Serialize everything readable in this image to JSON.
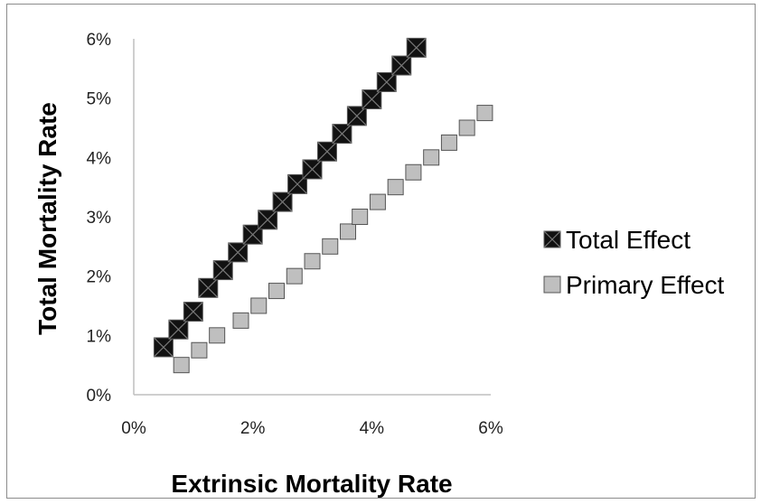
{
  "chart_data": {
    "type": "scatter",
    "title": "",
    "xlabel": "Extrinsic Mortality Rate",
    "ylabel": "Total Mortality Rate",
    "xlim": [
      0,
      0.06
    ],
    "ylim": [
      0,
      0.06
    ],
    "x_ticks": [
      "0%",
      "2%",
      "4%",
      "6%"
    ],
    "y_ticks": [
      "0%",
      "1%",
      "2%",
      "3%",
      "4%",
      "5%",
      "6%"
    ],
    "grid": false,
    "legend_position": "right",
    "series": [
      {
        "name": "Total Effect",
        "marker": "square-x",
        "fill": "#111111",
        "x": [
          0.005,
          0.0075,
          0.01,
          0.0125,
          0.015,
          0.0175,
          0.02,
          0.0225,
          0.025,
          0.0275,
          0.03,
          0.0325,
          0.035,
          0.0375,
          0.04,
          0.0425,
          0.045,
          0.0475
        ],
        "y": [
          0.008,
          0.011,
          0.014,
          0.018,
          0.021,
          0.024,
          0.027,
          0.0295,
          0.0325,
          0.0355,
          0.038,
          0.041,
          0.044,
          0.047,
          0.0498,
          0.0527,
          0.0555,
          0.0585
        ]
      },
      {
        "name": "Primary Effect",
        "marker": "square",
        "fill": "#bfbfbf",
        "x": [
          0.008,
          0.011,
          0.014,
          0.018,
          0.021,
          0.024,
          0.027,
          0.03,
          0.033,
          0.036,
          0.038,
          0.041,
          0.044,
          0.047,
          0.05,
          0.053,
          0.056,
          0.059
        ],
        "y": [
          0.005,
          0.0075,
          0.01,
          0.0125,
          0.015,
          0.0175,
          0.02,
          0.0225,
          0.025,
          0.0275,
          0.03,
          0.0325,
          0.035,
          0.0375,
          0.04,
          0.0425,
          0.045,
          0.0475
        ]
      }
    ]
  }
}
